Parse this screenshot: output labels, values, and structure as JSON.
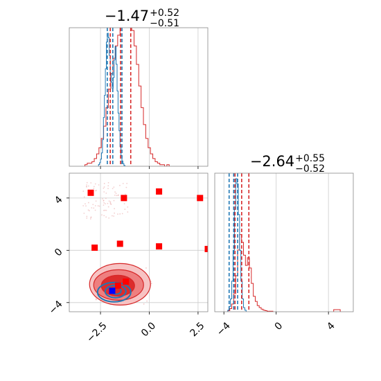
{
  "chart_data": {
    "type": "corner",
    "colors": {
      "primary": "#d62728",
      "secondary": "#1f77b4",
      "marker_primary": "#ff0000",
      "marker_secondary": "#0000ff"
    },
    "grid": true,
    "x_ticks": [
      -2.5,
      0.0,
      2.5
    ],
    "x_tick_labels": [
      "−2.5",
      "0.0",
      "2.5"
    ],
    "y_ticks": [
      -4,
      0,
      4
    ],
    "y_tick_labels": [
      "−4",
      "0",
      "4"
    ],
    "p2_ticks": [
      -4,
      0,
      4
    ],
    "p2_tick_labels": [
      "−4",
      "0",
      "4"
    ],
    "p1_range": [
      -4.1,
      3.0
    ],
    "p2_range": [
      -4.7,
      5.9
    ],
    "titles": {
      "p1": {
        "median": "−1.47",
        "plus": "+0.52",
        "minus": "−0.51"
      },
      "p2": {
        "median": "−2.64",
        "plus": "+0.55",
        "minus": "−0.52"
      }
    },
    "p1_hist_red": {
      "edges_start": -3.3,
      "bin_width": 0.12,
      "counts": [
        1,
        2,
        2,
        3,
        5,
        8,
        12,
        18,
        26,
        38,
        50,
        60,
        70,
        78,
        85,
        92,
        96,
        98,
        100,
        96,
        88,
        78,
        66,
        52,
        38,
        27,
        18,
        12,
        8,
        5,
        3,
        2,
        1,
        1,
        0,
        1
      ]
    },
    "p1_hist_blue": {
      "edges_start": -2.6,
      "bin_width": 0.05,
      "counts": [
        2,
        4,
        8,
        15,
        30,
        55,
        80,
        110,
        140,
        150,
        145,
        125,
        105,
        95,
        88,
        100,
        120,
        135,
        115,
        85,
        60,
        40,
        22,
        12,
        6,
        3,
        1
      ]
    },
    "p1_quantiles_red": [
      -2.0,
      -1.47,
      -0.95
    ],
    "p1_quantiles_blue": [
      -2.15,
      -1.87,
      -1.4
    ],
    "p2_hist_red": {
      "edges_start": -3.7,
      "bin_width": 0.15,
      "counts": [
        2,
        6,
        15,
        35,
        70,
        120,
        150,
        135,
        110,
        90,
        105,
        85,
        55,
        30,
        20,
        12,
        8,
        5,
        3,
        2,
        1,
        1,
        1
      ]
    },
    "p2_hist_blue": {
      "edges_start": -3.7,
      "bin_width": 0.1,
      "counts": [
        3,
        10,
        25,
        60,
        120,
        200,
        260,
        250,
        190,
        120,
        60,
        25,
        8,
        3
      ]
    },
    "p2_quantiles_red": [
      -3.15,
      -2.64,
      -2.09
    ],
    "p2_quantiles_blue": [
      -3.6,
      -3.25,
      -2.95
    ],
    "scatter_markers_red": [
      [
        -3.0,
        4.4
      ],
      [
        -1.3,
        4.0
      ],
      [
        0.5,
        4.5
      ],
      [
        2.6,
        4.0
      ],
      [
        -2.8,
        0.2
      ],
      [
        -1.5,
        0.5
      ],
      [
        0.5,
        0.3
      ],
      [
        3.0,
        0.1
      ],
      [
        -1.6,
        -2.7
      ],
      [
        -1.2,
        -2.4
      ]
    ],
    "scatter_markers_blue": [
      [
        -1.9,
        -3.1
      ]
    ],
    "contour_centers": {
      "red": [
        -1.5,
        -2.6
      ],
      "blue": [
        -1.8,
        -3.2
      ]
    }
  }
}
